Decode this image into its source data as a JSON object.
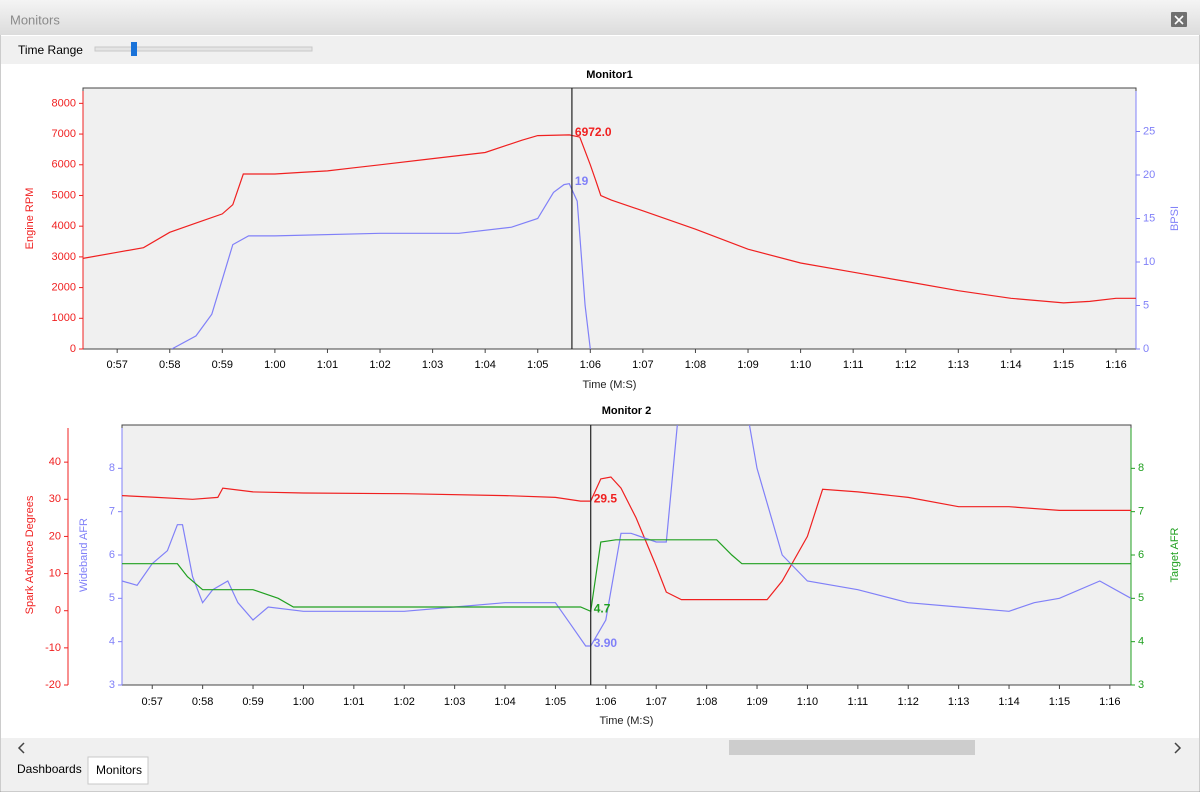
{
  "window": {
    "title": "Monitors"
  },
  "toolbar": {
    "label": "Time Range"
  },
  "tabs": [
    "Dashboards",
    "Monitors"
  ],
  "chart_data": [
    {
      "type": "line",
      "title": "Monitor1",
      "xlabel": "Time (M:S)",
      "ylabel": "Engine RPM",
      "y2label": "BPSI",
      "xlim": [
        56.35,
        76.38
      ],
      "xticks": [
        {
          "value": 57,
          "label": "0:57"
        },
        {
          "value": 58,
          "label": "0:58"
        },
        {
          "value": 59,
          "label": "0:59"
        },
        {
          "value": 60,
          "label": "1:00"
        },
        {
          "value": 61,
          "label": "1:01"
        },
        {
          "value": 62,
          "label": "1:02"
        },
        {
          "value": 63,
          "label": "1:03"
        },
        {
          "value": 64,
          "label": "1:04"
        },
        {
          "value": 65,
          "label": "1:05"
        },
        {
          "value": 66,
          "label": "1:06"
        },
        {
          "value": 67,
          "label": "1:07"
        },
        {
          "value": 68,
          "label": "1:08"
        },
        {
          "value": 69,
          "label": "1:09"
        },
        {
          "value": 70,
          "label": "1:10"
        },
        {
          "value": 71,
          "label": "1:11"
        },
        {
          "value": 72,
          "label": "1:12"
        },
        {
          "value": 73,
          "label": "1:13"
        },
        {
          "value": 74,
          "label": "1:14"
        },
        {
          "value": 75,
          "label": "1:15"
        },
        {
          "value": 76,
          "label": "1:16"
        }
      ],
      "ylim": [
        0,
        8500
      ],
      "yticks": [
        0,
        1000,
        2000,
        3000,
        4000,
        5000,
        6000,
        7000,
        8000
      ],
      "y2lim": [
        0,
        30
      ],
      "y2ticks": [
        0,
        5,
        10,
        15,
        20,
        25
      ],
      "cursor": 65.65,
      "series": [
        {
          "name": "Engine RPM",
          "color": "#f02020",
          "axis": "y",
          "x": [
            56.35,
            57.0,
            57.5,
            58.0,
            58.5,
            59.0,
            59.2,
            59.4,
            60.0,
            60.5,
            61.0,
            61.5,
            62.0,
            63.0,
            64.0,
            64.7,
            65.0,
            65.6,
            65.8,
            66.0,
            66.1,
            66.2,
            66.4,
            67.0,
            68.0,
            69.0,
            70.0,
            71.0,
            72.0,
            73.0,
            74.0,
            75.0,
            75.5,
            76.0,
            76.38
          ],
          "values": [
            2950,
            3150,
            3300,
            3800,
            4100,
            4400,
            4700,
            5700,
            5700,
            5750,
            5800,
            5900,
            6000,
            6200,
            6400,
            6800,
            6950,
            6972,
            6900,
            6000,
            5500,
            5000,
            4850,
            4500,
            3900,
            3250,
            2800,
            2500,
            2200,
            1900,
            1650,
            1500,
            1550,
            1650,
            1650
          ]
        },
        {
          "name": "BPSI",
          "color": "#8080f8",
          "axis": "y2",
          "x": [
            58.04,
            58.5,
            58.8,
            59.0,
            59.2,
            59.5,
            60.0,
            62.0,
            63.5,
            64.5,
            65.0,
            65.3,
            65.5,
            65.6,
            65.75,
            65.9,
            66.0
          ],
          "values": [
            0,
            1.5,
            4,
            8,
            12,
            13,
            13,
            13.3,
            13.3,
            14,
            15,
            18,
            18.9,
            19,
            17,
            5,
            0
          ]
        }
      ],
      "annotations": [
        {
          "label": "6972.0",
          "value": 6972,
          "series": 0
        },
        {
          "label": "19",
          "value": 19,
          "series": 1
        }
      ]
    },
    {
      "type": "line",
      "title": "Monitor 2",
      "xlabel": "Time (M:S)",
      "ylabel": "Spark Advance Degrees",
      "y2label": "Wideband AFR",
      "y3label": "Target AFR",
      "xlim": [
        56.4,
        76.42
      ],
      "xticks": [
        {
          "value": 57,
          "label": "0:57"
        },
        {
          "value": 58,
          "label": "0:58"
        },
        {
          "value": 59,
          "label": "0:59"
        },
        {
          "value": 60,
          "label": "1:00"
        },
        {
          "value": 61,
          "label": "1:01"
        },
        {
          "value": 62,
          "label": "1:02"
        },
        {
          "value": 63,
          "label": "1:03"
        },
        {
          "value": 64,
          "label": "1:04"
        },
        {
          "value": 65,
          "label": "1:05"
        },
        {
          "value": 66,
          "label": "1:06"
        },
        {
          "value": 67,
          "label": "1:07"
        },
        {
          "value": 68,
          "label": "1:08"
        },
        {
          "value": 69,
          "label": "1:09"
        },
        {
          "value": 70,
          "label": "1:10"
        },
        {
          "value": 71,
          "label": "1:11"
        },
        {
          "value": 72,
          "label": "1:12"
        },
        {
          "value": 73,
          "label": "1:13"
        },
        {
          "value": 74,
          "label": "1:14"
        },
        {
          "value": 75,
          "label": "1:15"
        },
        {
          "value": 76,
          "label": "1:16"
        }
      ],
      "ylim": [
        -20,
        50
      ],
      "yticks": [
        -20,
        -10,
        0,
        10,
        20,
        30,
        40
      ],
      "y2lim": [
        3,
        9
      ],
      "y2ticks": [
        3,
        4,
        5,
        6,
        7,
        8
      ],
      "y3lim": [
        3,
        9
      ],
      "y3ticks": [
        3,
        4,
        5,
        6,
        7,
        8
      ],
      "cursor": 65.7,
      "series": [
        {
          "name": "Spark Advance Degrees",
          "color": "#f02020",
          "axis": "y",
          "x": [
            56.4,
            57.0,
            57.8,
            58.3,
            58.4,
            59.0,
            60.0,
            62.0,
            64.0,
            65.0,
            65.5,
            65.7,
            65.9,
            66.1,
            66.3,
            66.6,
            67.0,
            67.2,
            67.5,
            68.5,
            69.2,
            69.5,
            70.0,
            70.3,
            71.0,
            72.0,
            73.0,
            74.0,
            75.0,
            76.42
          ],
          "values": [
            31,
            30.6,
            30,
            30.5,
            33,
            32,
            31.7,
            31.5,
            31,
            30.5,
            29.5,
            29.5,
            35.5,
            36,
            33,
            25,
            12,
            5,
            3,
            3,
            3,
            8,
            20,
            32.7,
            32,
            30.5,
            28,
            28,
            27,
            27
          ]
        },
        {
          "name": "Wideband AFR",
          "color": "#8080f8",
          "axis": "y2",
          "x": [
            56.4,
            56.7,
            57.0,
            57.3,
            57.5,
            57.6,
            57.8,
            58.0,
            58.2,
            58.5,
            58.7,
            59.0,
            59.3,
            60.0,
            62.0,
            63.0,
            64.0,
            65.0,
            65.3,
            65.6,
            65.7,
            66.0,
            66.3,
            66.5,
            67.0,
            67.2,
            67.5,
            68.7,
            69.0,
            69.5,
            70.0,
            71.0,
            72.0,
            73.0,
            74.0,
            74.5,
            75.0,
            75.8,
            76.42
          ],
          "values": [
            5.4,
            5.3,
            5.8,
            6.1,
            6.7,
            6.7,
            5.5,
            4.9,
            5.2,
            5.4,
            4.9,
            4.5,
            4.8,
            4.7,
            4.7,
            4.8,
            4.9,
            4.9,
            4.4,
            3.9,
            3.9,
            4.5,
            6.5,
            6.5,
            6.3,
            6.3,
            10,
            10,
            8,
            6,
            5.4,
            5.2,
            4.9,
            4.8,
            4.7,
            4.9,
            5.0,
            5.4,
            5.0
          ]
        },
        {
          "name": "Target AFR",
          "color": "#20a020",
          "axis": "y3",
          "x": [
            56.4,
            57.5,
            57.7,
            58.0,
            59.0,
            59.5,
            59.8,
            65.5,
            65.7,
            65.9,
            66.2,
            68.2,
            68.5,
            68.7,
            76.42
          ],
          "values": [
            5.8,
            5.8,
            5.5,
            5.2,
            5.2,
            5.0,
            4.8,
            4.8,
            4.7,
            6.3,
            6.35,
            6.35,
            6.0,
            5.8,
            5.8
          ]
        }
      ],
      "annotations": [
        {
          "label": "29.5",
          "value": 29.5,
          "series": 0
        },
        {
          "label": "4.7",
          "value": 4.7,
          "series": 2
        },
        {
          "label": "3.90",
          "value": 3.9,
          "series": 1
        }
      ]
    }
  ]
}
